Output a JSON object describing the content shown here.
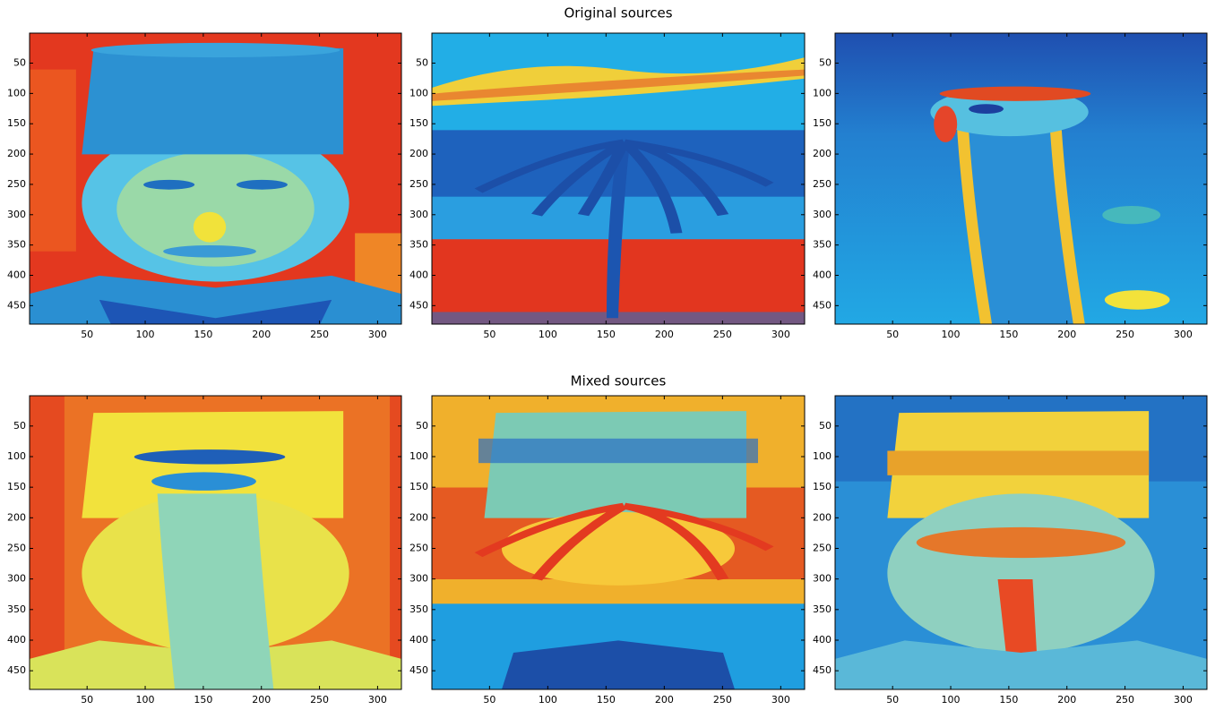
{
  "sections": [
    {
      "title": "Original sources"
    },
    {
      "title": "Mixed sources"
    }
  ],
  "axes": {
    "xlim": [
      0.5,
      320.5
    ],
    "ylim": [
      0.5,
      480.5
    ],
    "xticks": [
      50,
      100,
      150,
      200,
      250,
      300
    ],
    "yticks": [
      50,
      100,
      150,
      200,
      250,
      300,
      350,
      400,
      450
    ]
  }
}
